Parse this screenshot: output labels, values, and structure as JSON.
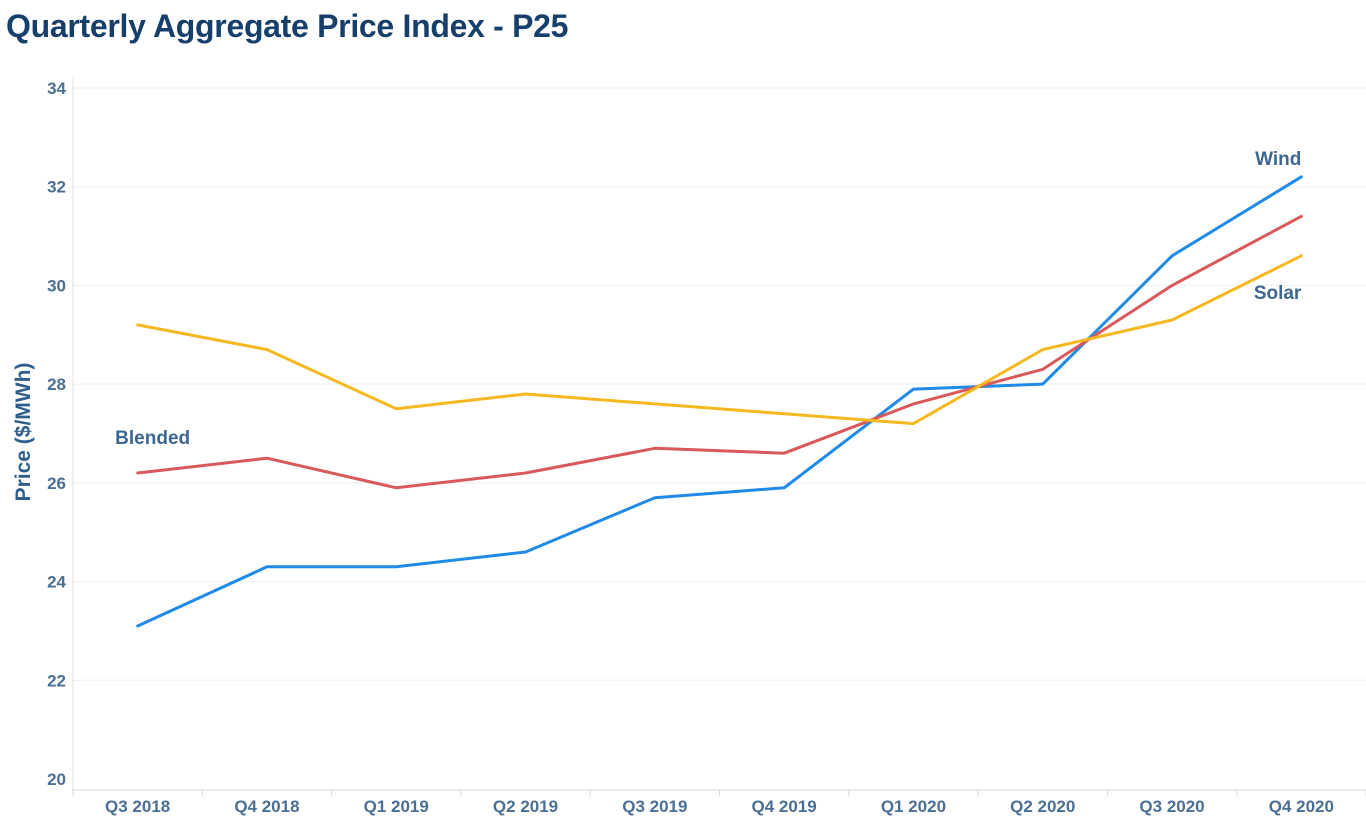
{
  "page": {
    "title": "Quarterly Aggregate Price Index - P25"
  },
  "chart_data": {
    "type": "line",
    "title": "Quarterly Aggregate Price Index - P25",
    "xlabel": "",
    "ylabel": "Price ($/MWh)",
    "ylim": [
      20,
      34
    ],
    "yticks": [
      20,
      22,
      24,
      26,
      28,
      30,
      32,
      34
    ],
    "grid": true,
    "legend": "none",
    "categories": [
      "Q3 2018",
      "Q4 2018",
      "Q1 2019",
      "Q2 2019",
      "Q3 2019",
      "Q4 2019",
      "Q1 2020",
      "Q2 2020",
      "Q3 2020",
      "Q4 2020"
    ],
    "series": [
      {
        "name": "Wind",
        "color": "#1f8ae8",
        "values": [
          23.1,
          24.3,
          24.3,
          24.6,
          25.7,
          25.9,
          27.9,
          28.0,
          30.6,
          32.2
        ]
      },
      {
        "name": "Blended",
        "color": "#d9595a",
        "values": [
          26.2,
          26.5,
          25.9,
          26.2,
          26.7,
          26.6,
          27.6,
          28.3,
          30.0,
          31.4
        ]
      },
      {
        "name": "Solar",
        "color": "#f5b820",
        "values": [
          29.2,
          28.7,
          27.5,
          27.8,
          27.6,
          27.4,
          27.2,
          28.7,
          29.3,
          30.6
        ]
      }
    ]
  }
}
